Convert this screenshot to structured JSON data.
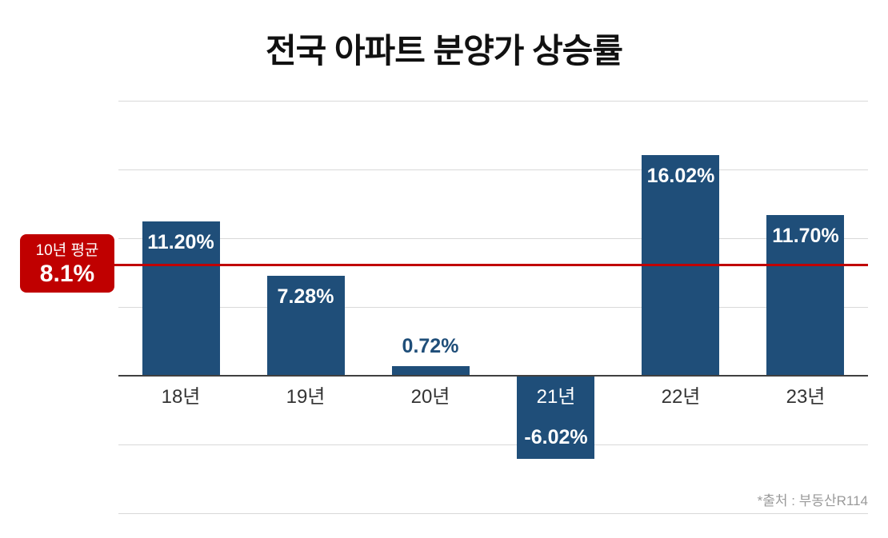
{
  "title": "전국 아파트 분양가 상승률",
  "source_note": "*출처 : 부동산R114",
  "average_badge": {
    "label": "10년 평균",
    "value": "8.1%"
  },
  "colors": {
    "bar": "#1f4e79",
    "average_line": "#c00000",
    "badge_bg": "#c00000",
    "grid": "#d9d9d9",
    "axis": "#404040",
    "value_label_inside": "#ffffff",
    "value_label_outside": "#1f4e79",
    "category_label": "#333333",
    "category_label_on_bar": "#ffffff"
  },
  "chart_data": {
    "type": "bar",
    "title": "전국 아파트 분양가 상승률",
    "categories": [
      "18년",
      "19년",
      "20년",
      "21년",
      "22년",
      "23년"
    ],
    "values": [
      11.2,
      7.28,
      0.72,
      -6.02,
      16.02,
      11.7
    ],
    "value_labels": [
      "11.20%",
      "7.28%",
      "0.72%",
      "-6.02%",
      "16.02%",
      "11.70%"
    ],
    "average_line": {
      "value": 8.1,
      "label": "10년 평균",
      "value_label": "8.1%"
    },
    "xlabel": "",
    "ylabel": "",
    "ylim": [
      -10,
      20
    ],
    "gridline_values": [
      20,
      15,
      10,
      5,
      -5,
      -10
    ],
    "grid": true,
    "legend": false,
    "source": "*출처 : 부동산R114"
  }
}
